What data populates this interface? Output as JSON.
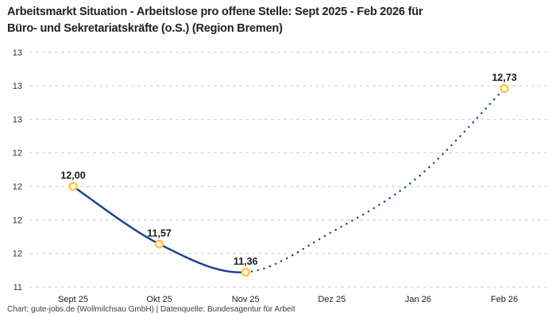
{
  "header": {
    "title_lines": [
      "Arbeitsmarkt Situation - Arbeitslose pro offene Stelle: Sept 2025 - Feb 2026 für",
      "Büro- und Sekretariatskräfte (o.S.) (Region Bremen)"
    ]
  },
  "footer": {
    "text": "Chart: gute-jobs.de (Wollmilchsau GmbH) | Datenquelle: Bundesagentur für Arbeit"
  },
  "chart_data": {
    "type": "line",
    "title": "Arbeitsmarkt Situation - Arbeitslose pro offene Stelle: Sept 2025 - Feb 2026 für Büro- und Sekretariatskräfte (o.S.) (Region Bremen)",
    "x_categories": [
      "Sept 25",
      "Okt 25",
      "Nov 25",
      "Dez 25",
      "Jan 26",
      "Feb 26"
    ],
    "points": [
      {
        "x": "Sept 25",
        "y": 12.0,
        "label": "12,00",
        "marker": true,
        "implied": false
      },
      {
        "x": "Okt 25",
        "y": 11.57,
        "label": "11,57",
        "marker": true,
        "implied": false
      },
      {
        "x": "Nov 25",
        "y": 11.36,
        "label": "11,36",
        "marker": true,
        "implied": false
      },
      {
        "x": "Dez 25",
        "y": 11.66,
        "label": "",
        "marker": false,
        "implied": true
      },
      {
        "x": "Jan 26",
        "y": 12.07,
        "label": "",
        "marker": false,
        "implied": true
      },
      {
        "x": "Feb 26",
        "y": 12.73,
        "label": "12,73",
        "marker": true,
        "implied": false
      }
    ],
    "segments": {
      "solid_from_index": 0,
      "solid_to_index": 2,
      "dotted_from_index": 2,
      "dotted_to_index": 5
    },
    "y_axis": {
      "tick_values": [
        13.0,
        12.75,
        12.5,
        12.25,
        12.0,
        11.75,
        11.5,
        11.25
      ],
      "tick_labels": [
        "13",
        "13",
        "13",
        "12",
        "12",
        "12",
        "12",
        "11"
      ],
      "range": [
        11.25,
        13.0
      ]
    },
    "xlabel": "",
    "ylabel": "",
    "grid": "horizontal-dashed",
    "legend": "none",
    "colors": {
      "line": "#1c3a9c",
      "marker_ring": "#ffc53d",
      "marker_fill": "#ffffff",
      "gridline": "#cbcbcb",
      "tick_label": "#333333",
      "x_label": "#222222",
      "point_label": "#1a1a1a"
    }
  }
}
